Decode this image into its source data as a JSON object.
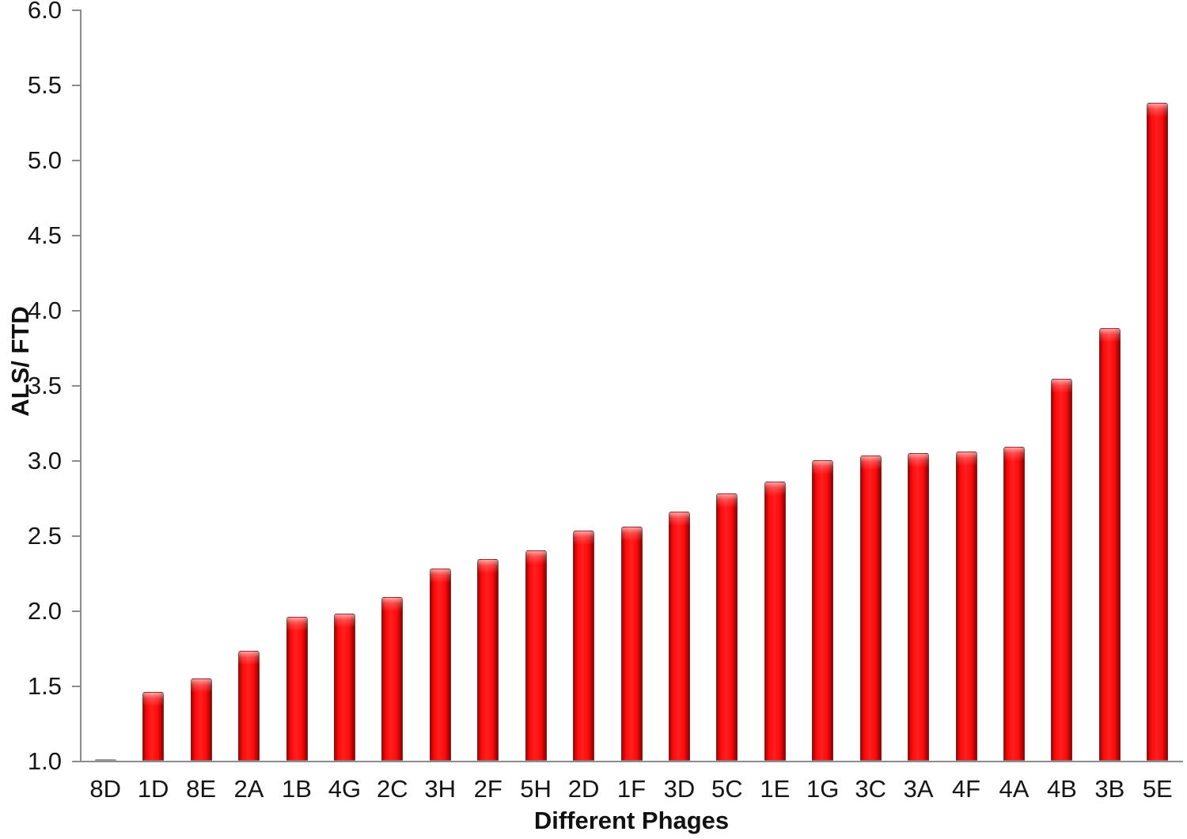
{
  "chart_data": {
    "type": "bar",
    "title": "",
    "xlabel": "Different Phages",
    "ylabel": "ALS/ FTD",
    "categories": [
      "8D",
      "1D",
      "8E",
      "2A",
      "1B",
      "4G",
      "2C",
      "3H",
      "2F",
      "5H",
      "2D",
      "1F",
      "3D",
      "5C",
      "1E",
      "1G",
      "3C",
      "3A",
      "4F",
      "4A",
      "4B",
      "3B",
      "5E"
    ],
    "values": [
      1.01,
      1.46,
      1.55,
      1.73,
      1.96,
      1.98,
      2.09,
      2.28,
      2.34,
      2.4,
      2.53,
      2.56,
      2.66,
      2.78,
      2.86,
      3.0,
      3.03,
      3.05,
      3.06,
      3.09,
      3.54,
      3.88,
      5.38
    ],
    "ylim": [
      1.0,
      6.0
    ],
    "ytick_step": 0.5,
    "ytick_decimals": 1,
    "grid": false,
    "legend": "none",
    "colors": {
      "bar_fill": "#fb0a0a",
      "bar_fill_bright": "#ff1f1f",
      "bar_edge_dark_left": "#a80000",
      "bar_edge_dark_right": "#8f0000",
      "bar_gloss": "rgba(255,255,255,0.6)",
      "axis": "#8c8c8c",
      "text": "#151515"
    }
  }
}
